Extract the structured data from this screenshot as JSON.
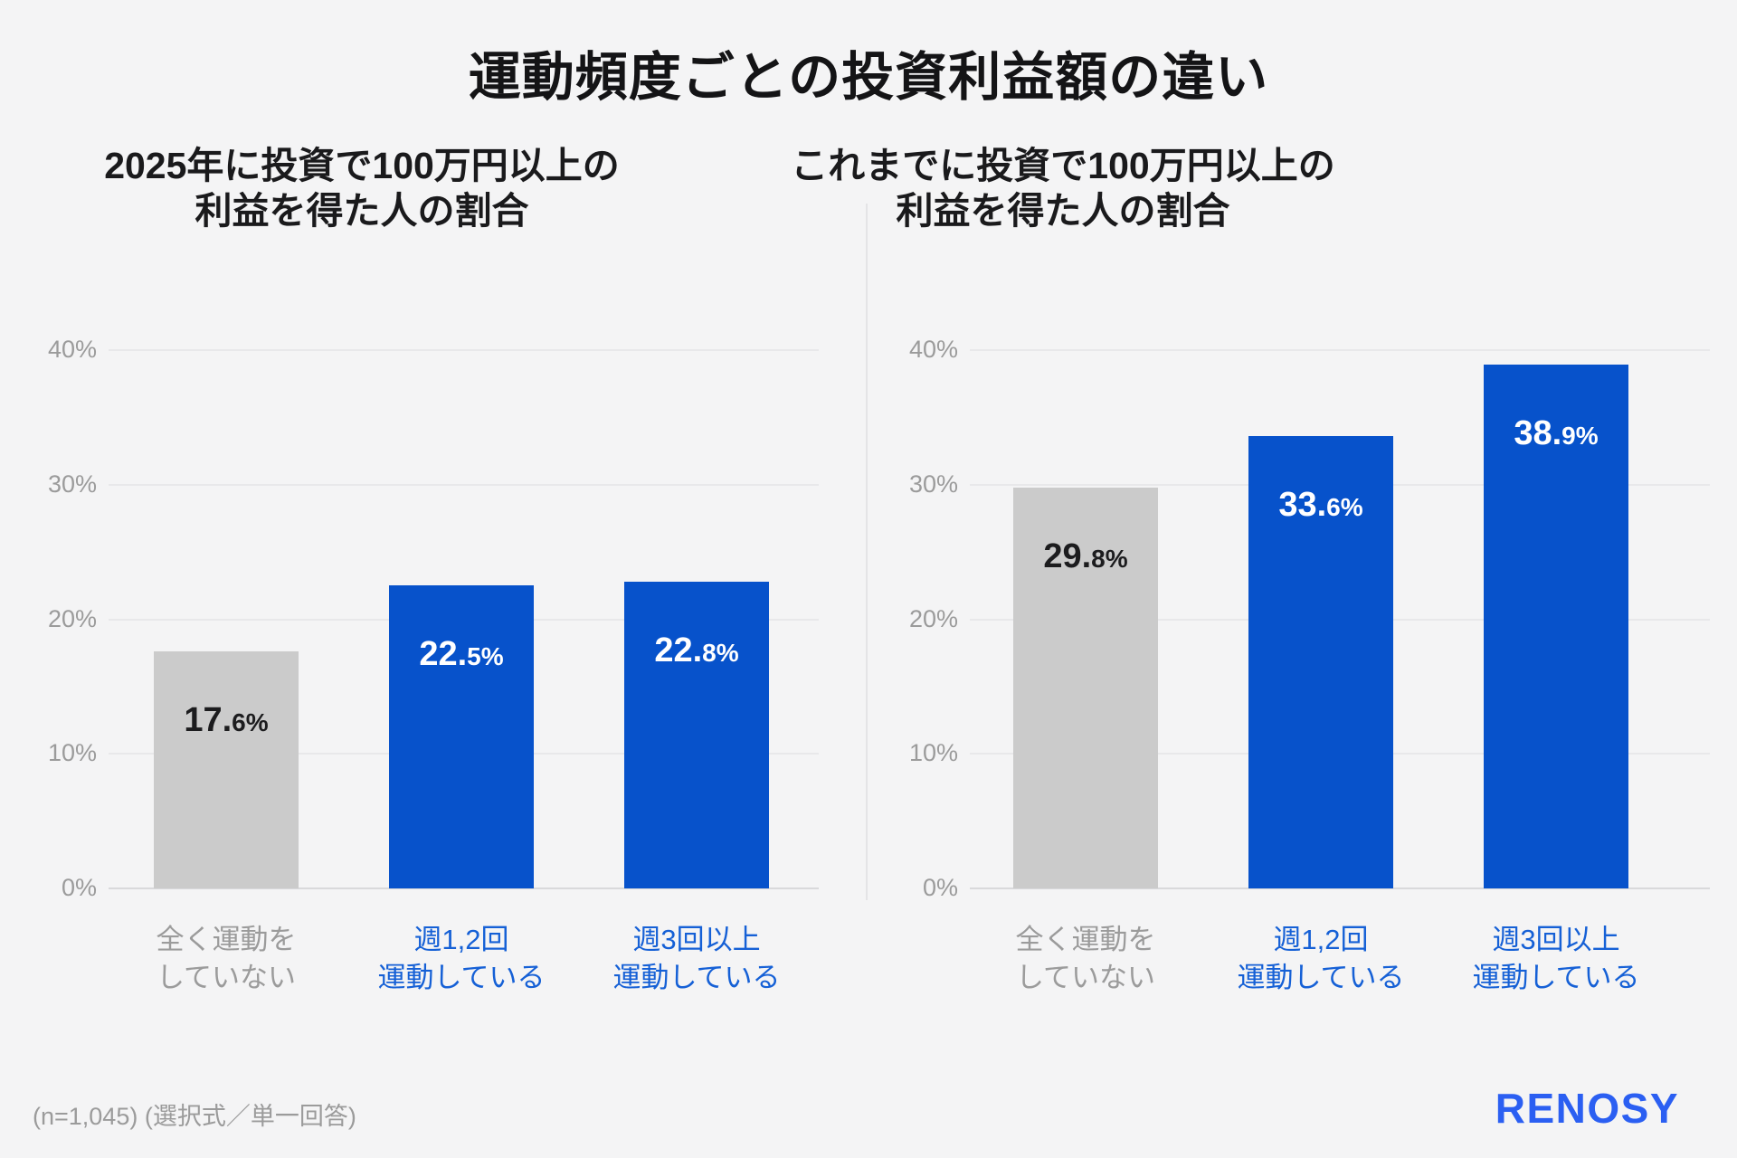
{
  "title": "運動頻度ごとの投資利益額の違い",
  "footer": {
    "note": "(n=1,045) (選択式／単一回答)",
    "logo": "RENOSY"
  },
  "colors": {
    "background": "#f4f4f5",
    "bar_blue": "#0752cb",
    "bar_gray": "#cbcbcb",
    "category_blue": "#1560d6",
    "category_gray": "#9b9b9b",
    "logo_blue": "#2b5ff2"
  },
  "chart_data": [
    {
      "type": "bar",
      "title_lines": [
        "2025年に投資で100万円以上の",
        "利益を得た人の割合"
      ],
      "categories": [
        [
          "全く運動を",
          "していない"
        ],
        [
          "週1,2回",
          "運動している"
        ],
        [
          "週3回以上",
          "運動している"
        ]
      ],
      "values": [
        17.6,
        22.5,
        22.8
      ],
      "unit": "%",
      "ylim": [
        0,
        40
      ],
      "yticks": [
        0,
        10,
        20,
        30,
        40
      ],
      "grid": true,
      "bar_colors": [
        "#cbcbcb",
        "#0752cb",
        "#0752cb"
      ],
      "value_label_colors": [
        "#1c1c1e",
        "#ffffff",
        "#ffffff"
      ],
      "category_label_colors": [
        "#9b9b9b",
        "#1560d6",
        "#1560d6"
      ]
    },
    {
      "type": "bar",
      "title_lines": [
        "これまでに投資で100万円以上の",
        "利益を得た人の割合"
      ],
      "categories": [
        [
          "全く運動を",
          "していない"
        ],
        [
          "週1,2回",
          "運動している"
        ],
        [
          "週3回以上",
          "運動している"
        ]
      ],
      "values": [
        29.8,
        33.6,
        38.9
      ],
      "unit": "%",
      "ylim": [
        0,
        40
      ],
      "yticks": [
        0,
        10,
        20,
        30,
        40
      ],
      "grid": true,
      "bar_colors": [
        "#cbcbcb",
        "#0752cb",
        "#0752cb"
      ],
      "value_label_colors": [
        "#1c1c1e",
        "#ffffff",
        "#ffffff"
      ],
      "category_label_colors": [
        "#9b9b9b",
        "#1560d6",
        "#1560d6"
      ]
    }
  ]
}
